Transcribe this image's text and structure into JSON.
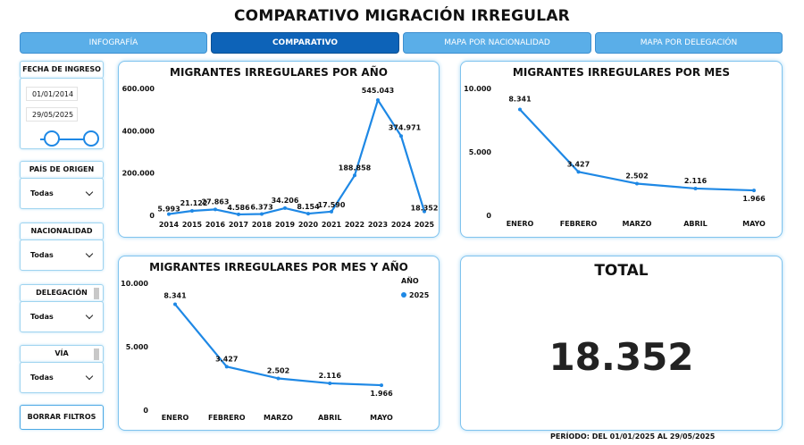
{
  "title": "COMPARATIVO MIGRACIÓN IRREGULAR",
  "tabs": [
    {
      "label": "INFOGRAFÍA"
    },
    {
      "label": "COMPARATIVO"
    },
    {
      "label": "MAPA POR NACIONALIDAD"
    },
    {
      "label": "MAPA POR DELEGACIÓN"
    }
  ],
  "filters": {
    "fecha_ingreso": {
      "label": "FECHA DE INGRESO",
      "start": "01/01/2014",
      "end": "29/05/2025"
    },
    "pais_origen": {
      "label": "PAÍS DE ORIGEN",
      "value": "Todas"
    },
    "nacionalidad": {
      "label": "NACIONALIDAD",
      "value": "Todas"
    },
    "delegacion": {
      "label": "DELEGACIÓN",
      "value": "Todas"
    },
    "via": {
      "label": "VÍA",
      "value": "Todas"
    },
    "clear_label": "BORRAR FILTROS"
  },
  "total": {
    "label": "TOTAL",
    "value": "18.352"
  },
  "period": "PERÍODO: DEL 01/01/2025  AL  29/05/2025",
  "colors": {
    "accent": "#1e88e5",
    "tab": "#5aaee8",
    "tab_active": "#0d63b8",
    "card_border": "#7fc3ee"
  },
  "chart_data": [
    {
      "type": "line",
      "title": "MIGRANTES IRREGULARES POR AÑO",
      "categories": [
        "2014",
        "2015",
        "2016",
        "2017",
        "2018",
        "2019",
        "2020",
        "2021",
        "2022",
        "2023",
        "2024",
        "2025"
      ],
      "values": [
        5993,
        21122,
        27863,
        4586,
        6373,
        34206,
        8154,
        17590,
        188858,
        545043,
        374971,
        18352
      ],
      "labels": [
        "5.993",
        "21.122",
        "27.863",
        "4.586",
        "6.373",
        "34.206",
        "8.154",
        "17.590",
        "188.858",
        "545.043",
        "374.971",
        "18.352"
      ],
      "yticks": [
        "0",
        "200.000",
        "400.000",
        "600.000"
      ],
      "ylim": [
        0,
        600000
      ]
    },
    {
      "type": "line",
      "title": "MIGRANTES IRREGULARES POR MES",
      "categories": [
        "ENERO",
        "FEBRERO",
        "MARZO",
        "ABRIL",
        "MAYO"
      ],
      "values": [
        8341,
        3427,
        2502,
        2116,
        1966
      ],
      "labels": [
        "8.341",
        "3.427",
        "2.502",
        "2.116",
        "1.966"
      ],
      "yticks": [
        "0",
        "5.000",
        "10.000"
      ],
      "ylim": [
        0,
        10000
      ]
    },
    {
      "type": "line",
      "title": "MIGRANTES IRREGULARES POR MES Y AÑO",
      "categories": [
        "ENERO",
        "FEBRERO",
        "MARZO",
        "ABRIL",
        "MAYO"
      ],
      "series": [
        {
          "name": "2025",
          "values": [
            8341,
            3427,
            2502,
            2116,
            1966
          ]
        }
      ],
      "labels": [
        "8.341",
        "3.427",
        "2.502",
        "2.116",
        "1.966"
      ],
      "legend_title": "AÑO",
      "yticks": [
        "0",
        "5.000",
        "10.000"
      ],
      "ylim": [
        0,
        10000
      ]
    }
  ]
}
